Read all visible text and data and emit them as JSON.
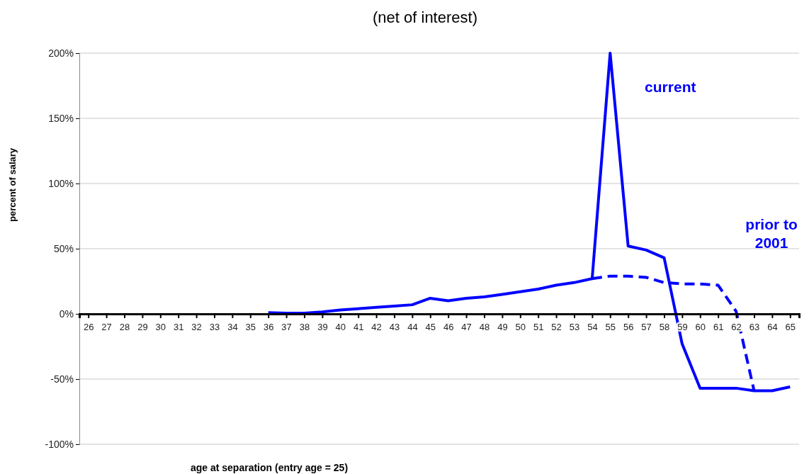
{
  "chart_data": {
    "type": "line",
    "title": "(net of interest)",
    "xlabel": "age at separation (entry age = 25)",
    "ylabel": "percent of salary",
    "categories": [
      "26",
      "27",
      "28",
      "29",
      "30",
      "31",
      "32",
      "33",
      "34",
      "35",
      "36",
      "37",
      "38",
      "39",
      "40",
      "41",
      "42",
      "43",
      "44",
      "45",
      "46",
      "47",
      "48",
      "49",
      "50",
      "51",
      "52",
      "53",
      "54",
      "55",
      "56",
      "57",
      "58",
      "59",
      "60",
      "61",
      "62",
      "63",
      "64",
      "65"
    ],
    "series": [
      {
        "name": "current",
        "color": "#0000ff",
        "line_style": "solid",
        "values": [
          null,
          null,
          null,
          null,
          null,
          null,
          null,
          null,
          null,
          null,
          1,
          0.5,
          0.5,
          1.5,
          3,
          4,
          5,
          6,
          7,
          12,
          10,
          12,
          13,
          15,
          17,
          19,
          22,
          24,
          27,
          200,
          52,
          49,
          43,
          -23,
          -57,
          -57,
          -57,
          -59,
          -59,
          -56
        ]
      },
      {
        "name": "prior to 2001",
        "color": "#0000ff",
        "line_style": "dashed",
        "values": [
          null,
          null,
          null,
          null,
          null,
          null,
          null,
          null,
          null,
          null,
          null,
          null,
          null,
          null,
          null,
          null,
          null,
          null,
          null,
          null,
          null,
          null,
          null,
          null,
          null,
          null,
          null,
          null,
          27,
          29,
          29,
          28,
          24,
          23,
          23,
          22,
          2,
          -59,
          null,
          null
        ]
      }
    ],
    "ylim": [
      -100,
      200
    ],
    "yticks": [
      {
        "value": -100,
        "label": "-100%"
      },
      {
        "value": -50,
        "label": "-50%"
      },
      {
        "value": 0,
        "label": "0%"
      },
      {
        "value": 50,
        "label": "50%"
      },
      {
        "value": 100,
        "label": "100%"
      },
      {
        "value": 150,
        "label": "150%"
      },
      {
        "value": 200,
        "label": "200%"
      }
    ],
    "grid": "y",
    "legend": false
  }
}
